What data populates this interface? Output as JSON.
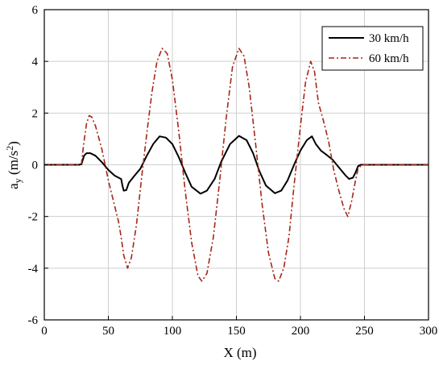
{
  "chart_data": {
    "type": "line",
    "xlabel": "X (m)",
    "ylabel_main": "a",
    "ylabel_sub": "y",
    "ylabel_unit_pre": " (m/s",
    "ylabel_unit_sup": "2",
    "ylabel_unit_post": ")",
    "xlim": [
      0,
      300
    ],
    "ylim": [
      -6,
      6
    ],
    "xticks": [
      0,
      50,
      100,
      150,
      200,
      250,
      300
    ],
    "yticks": [
      -6,
      -4,
      -2,
      0,
      2,
      4,
      6
    ],
    "grid": true,
    "legend_position": "top-right",
    "series": [
      {
        "name": "30 km/h",
        "color": "#000000",
        "style": "solid",
        "points": [
          [
            0,
            0
          ],
          [
            27,
            0
          ],
          [
            29,
            0.02
          ],
          [
            31,
            0.35
          ],
          [
            33,
            0.45
          ],
          [
            36,
            0.45
          ],
          [
            40,
            0.35
          ],
          [
            45,
            0.1
          ],
          [
            50,
            -0.2
          ],
          [
            55,
            -0.42
          ],
          [
            58,
            -0.5
          ],
          [
            60,
            -0.55
          ],
          [
            61,
            -0.8
          ],
          [
            62,
            -1.0
          ],
          [
            64,
            -0.98
          ],
          [
            66,
            -0.7
          ],
          [
            70,
            -0.45
          ],
          [
            75,
            -0.15
          ],
          [
            80,
            0.35
          ],
          [
            85,
            0.8
          ],
          [
            90,
            1.1
          ],
          [
            95,
            1.05
          ],
          [
            100,
            0.8
          ],
          [
            105,
            0.3
          ],
          [
            110,
            -0.3
          ],
          [
            115,
            -0.85
          ],
          [
            122,
            -1.12
          ],
          [
            127,
            -1.0
          ],
          [
            133,
            -0.55
          ],
          [
            138,
            0.1
          ],
          [
            145,
            0.8
          ],
          [
            152,
            1.12
          ],
          [
            158,
            0.95
          ],
          [
            163,
            0.45
          ],
          [
            168,
            -0.25
          ],
          [
            173,
            -0.8
          ],
          [
            180,
            -1.1
          ],
          [
            185,
            -1.0
          ],
          [
            190,
            -0.6
          ],
          [
            195,
            0.0
          ],
          [
            200,
            0.55
          ],
          [
            205,
            0.95
          ],
          [
            209,
            1.1
          ],
          [
            212,
            0.8
          ],
          [
            216,
            0.55
          ],
          [
            220,
            0.4
          ],
          [
            225,
            0.2
          ],
          [
            230,
            -0.1
          ],
          [
            235,
            -0.4
          ],
          [
            238,
            -0.55
          ],
          [
            241,
            -0.5
          ],
          [
            243,
            -0.3
          ],
          [
            245,
            -0.05
          ],
          [
            247,
            0
          ],
          [
            300,
            0
          ]
        ]
      },
      {
        "name": "60 km/h",
        "color": "#a42718",
        "style": "dashdot",
        "points": [
          [
            0,
            0
          ],
          [
            27,
            0
          ],
          [
            29,
            0.05
          ],
          [
            31,
            0.9
          ],
          [
            33,
            1.6
          ],
          [
            35,
            1.9
          ],
          [
            37,
            1.85
          ],
          [
            40,
            1.5
          ],
          [
            45,
            0.6
          ],
          [
            50,
            -0.6
          ],
          [
            55,
            -1.6
          ],
          [
            58,
            -2.2
          ],
          [
            60,
            -2.8
          ],
          [
            62,
            -3.5
          ],
          [
            65,
            -4.0
          ],
          [
            68,
            -3.6
          ],
          [
            72,
            -2.3
          ],
          [
            76,
            -0.5
          ],
          [
            80,
            1.2
          ],
          [
            84,
            2.8
          ],
          [
            88,
            4.0
          ],
          [
            92,
            4.5
          ],
          [
            96,
            4.3
          ],
          [
            100,
            3.3
          ],
          [
            105,
            1.3
          ],
          [
            110,
            -1.0
          ],
          [
            115,
            -3.0
          ],
          [
            120,
            -4.3
          ],
          [
            123,
            -4.5
          ],
          [
            127,
            -4.2
          ],
          [
            132,
            -2.8
          ],
          [
            137,
            -0.6
          ],
          [
            142,
            1.8
          ],
          [
            147,
            3.8
          ],
          [
            152,
            4.5
          ],
          [
            156,
            4.2
          ],
          [
            160,
            3.0
          ],
          [
            165,
            0.8
          ],
          [
            170,
            -1.5
          ],
          [
            175,
            -3.4
          ],
          [
            180,
            -4.4
          ],
          [
            183,
            -4.5
          ],
          [
            187,
            -4.0
          ],
          [
            191,
            -2.8
          ],
          [
            195,
            -0.8
          ],
          [
            200,
            1.5
          ],
          [
            204,
            3.2
          ],
          [
            208,
            4.0
          ],
          [
            211,
            3.6
          ],
          [
            214,
            2.4
          ],
          [
            218,
            1.7
          ],
          [
            222,
            0.9
          ],
          [
            226,
            -0.2
          ],
          [
            230,
            -1.0
          ],
          [
            234,
            -1.7
          ],
          [
            237,
            -2.0
          ],
          [
            240,
            -1.4
          ],
          [
            243,
            -0.6
          ],
          [
            245,
            -0.15
          ],
          [
            248,
            0
          ],
          [
            300,
            0
          ]
        ]
      }
    ]
  }
}
